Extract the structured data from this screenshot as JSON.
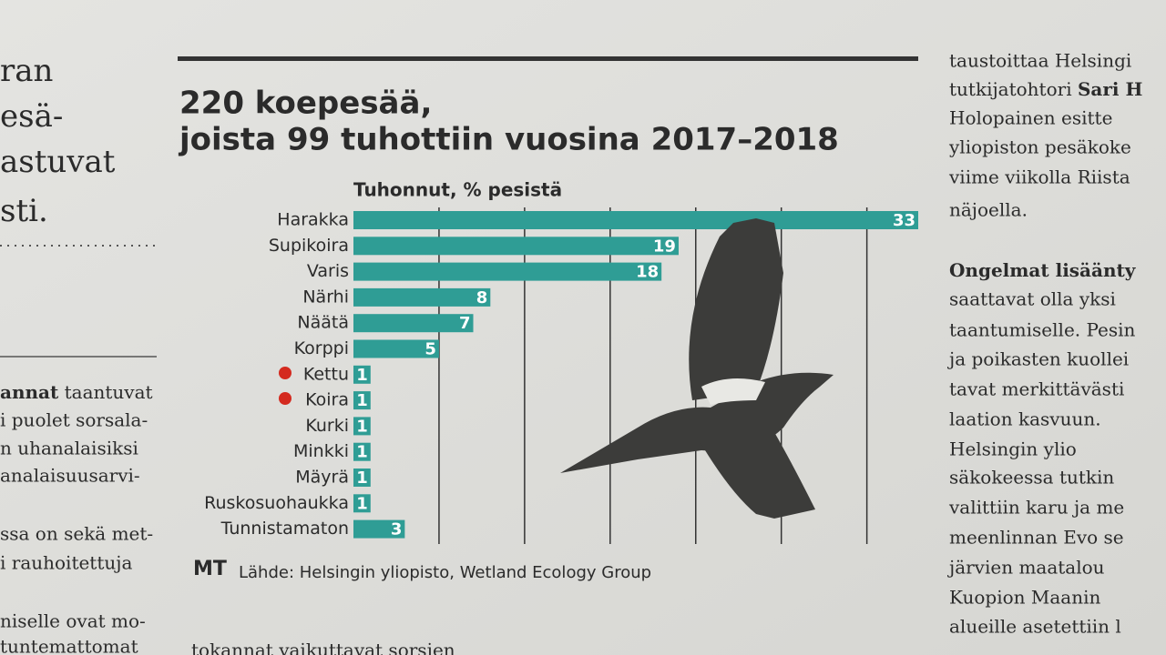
{
  "chart_data": {
    "type": "barh",
    "title": "220 koepesää,",
    "subtitle": "joista 99 tuhottiin vuosina 2017–2018",
    "axis_label": "Tuhonnut, % pesistä",
    "source_brand": "MT",
    "source": "Lähde: Helsingin yliopisto, Wetland Ecology Group",
    "categories": [
      "Harakka",
      "Supikoira",
      "Varis",
      "Närhi",
      "Näätä",
      "Korppi",
      "Kettu",
      "Koira",
      "Kurki",
      "Minkki",
      "Mäyrä",
      "Ruskosuohaukka",
      "Tunnistamaton"
    ],
    "values": [
      33,
      19,
      18,
      8,
      7,
      5,
      1,
      1,
      1,
      1,
      1,
      1,
      3
    ],
    "color": "#2f9d95",
    "xlim": [
      0,
      33
    ],
    "xticks": [
      5,
      10,
      15,
      20,
      25,
      30
    ],
    "grid": true
  },
  "left_column": [
    "ran",
    "esä-",
    "astuvat",
    "sti.",
    [
      "annat",
      " taantuvat"
    ],
    "i puolet sorsala-",
    "n uhanalaisiksi",
    "analaisuusarvi-",
    "ssa on sekä met-",
    "i rauhoitettuja",
    "niselle ovat mo-",
    "tuntemattomat"
  ],
  "right_column": [
    "taustoittaa Helsingi",
    [
      "tutkijatohtori ",
      "Sari H"
    ],
    "Holopainen esitte",
    "yliopiston pesäkoke",
    "viime viikolla Riista",
    "näjoella.",
    [
      "Ongelmat lisäänty",
      ""
    ],
    "saattavat olla yksi",
    "taantumiselle. Pesin",
    "ja poikasten kuollei",
    "tavat merkittävästi",
    "laation kasvuun.",
    "Helsingin ylio",
    "säkokeessa tutkin",
    "valittiin karu ja me",
    "meenlinnan Evo se",
    "järvien maatalou",
    "Kuopion Maanin",
    "alueille asetettiin l"
  ],
  "bottom_line": "tokannat vaikuttavat sorsien"
}
